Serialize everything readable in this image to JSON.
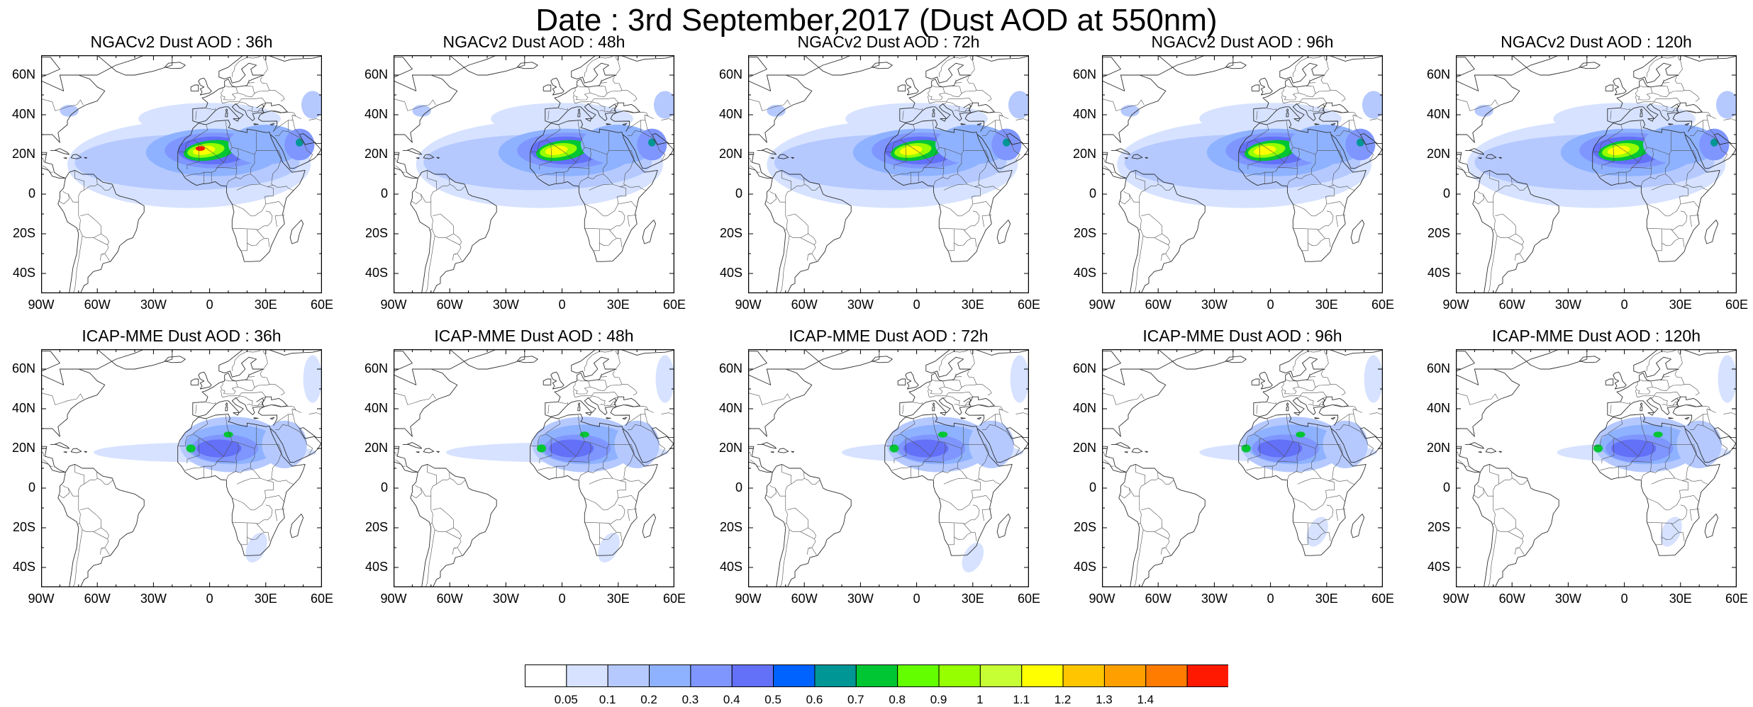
{
  "title": "Date : 3rd September,2017 (Dust AOD at 550nm)",
  "lat_labels": [
    "60N",
    "40N",
    "20N",
    "0",
    "20S",
    "40S"
  ],
  "lon_labels": [
    "90W",
    "60W",
    "30W",
    "0",
    "30E",
    "60E"
  ],
  "map_extent": {
    "lon": [
      -90,
      60
    ],
    "lat": [
      -50,
      70
    ]
  },
  "panels": [
    {
      "title": "NGACv2 Dust AOD : 36h",
      "model": "NGACv2",
      "lead": "36h"
    },
    {
      "title": "NGACv2 Dust AOD : 48h",
      "model": "NGACv2",
      "lead": "48h"
    },
    {
      "title": "NGACv2 Dust AOD : 72h",
      "model": "NGACv2",
      "lead": "72h"
    },
    {
      "title": "NGACv2 Dust AOD : 96h",
      "model": "NGACv2",
      "lead": "96h"
    },
    {
      "title": "NGACv2 Dust AOD : 120h",
      "model": "NGACv2",
      "lead": "120h"
    },
    {
      "title": "ICAP-MME Dust AOD : 36h",
      "model": "ICAP-MME",
      "lead": "36h"
    },
    {
      "title": "ICAP-MME Dust AOD : 48h",
      "model": "ICAP-MME",
      "lead": "48h"
    },
    {
      "title": "ICAP-MME Dust AOD : 72h",
      "model": "ICAP-MME",
      "lead": "72h"
    },
    {
      "title": "ICAP-MME Dust AOD : 96h",
      "model": "ICAP-MME",
      "lead": "96h"
    },
    {
      "title": "ICAP-MME Dust AOD : 120h",
      "model": "ICAP-MME",
      "lead": "120h"
    }
  ],
  "colorbar": {
    "labels": [
      "0.05",
      "0.1",
      "0.2",
      "0.3",
      "0.4",
      "0.5",
      "0.6",
      "0.7",
      "0.8",
      "0.9",
      "1",
      "1.1",
      "1.2",
      "1.3",
      "1.4"
    ],
    "colors": [
      "#ffffff",
      "#d6e2ff",
      "#b5c9ff",
      "#8eb2ff",
      "#7f96ff",
      "#6370f8",
      "#0063ff",
      "#009696",
      "#00c633",
      "#63ff00",
      "#96ff00",
      "#c6ff33",
      "#ffff00",
      "#ffc600",
      "#ffa000",
      "#ff7c00",
      "#ff1900"
    ]
  }
}
